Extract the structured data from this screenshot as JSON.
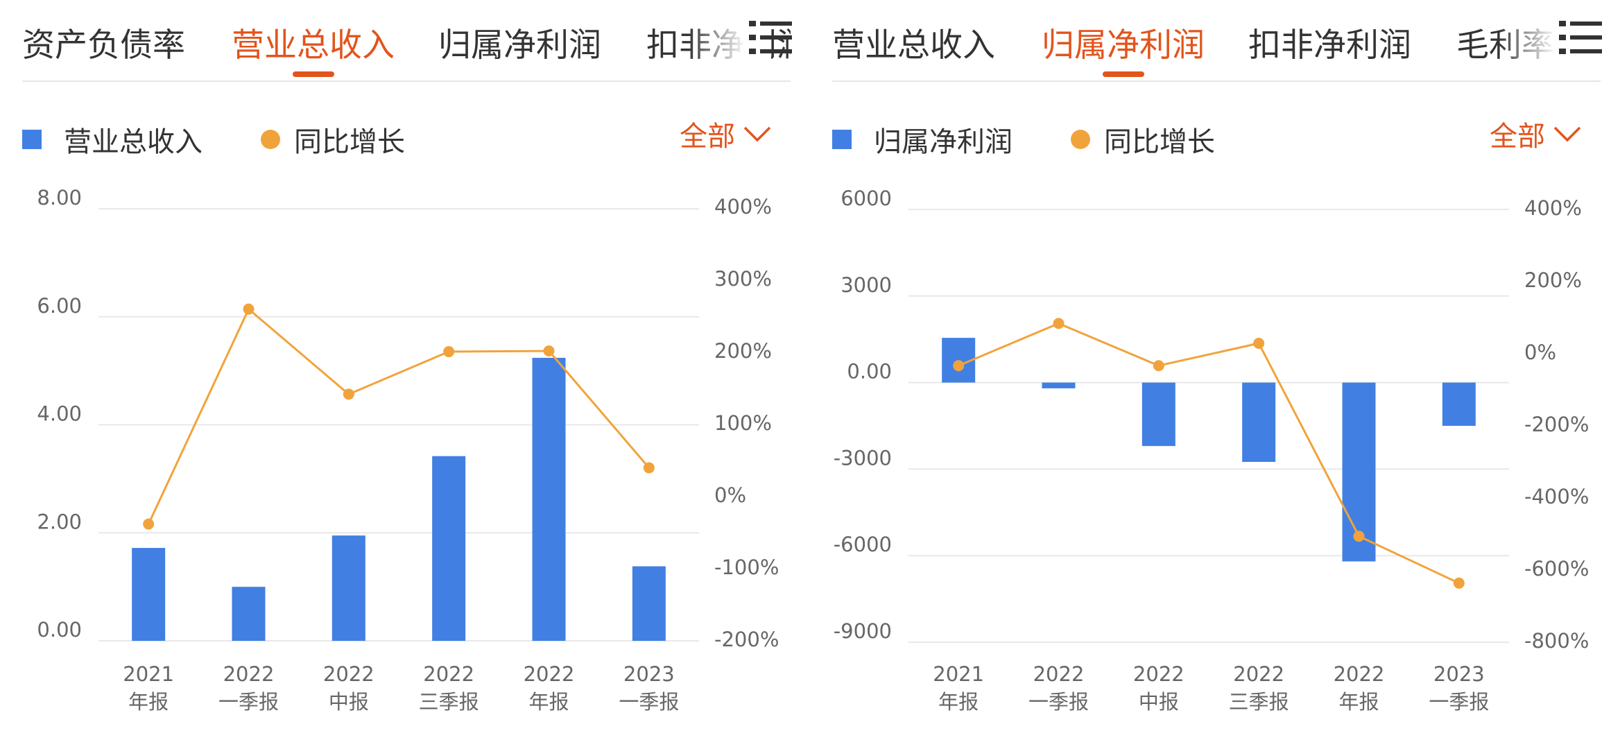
{
  "colors": {
    "accent": "#e2541c",
    "bar": "#4180e2",
    "line": "#f1a33b",
    "grid": "#e8e8e8",
    "text": "#333333",
    "axis_text": "#666666"
  },
  "panels": [
    {
      "tabs": [
        "资产负债率",
        "营业总收入",
        "归属净利润",
        "扣非净利润"
      ],
      "active_tab": 1,
      "legend": {
        "bar_label": "营业总收入",
        "line_label": "同比增长"
      },
      "filter_label": "全部",
      "menu_icon": "list-menu-icon"
    },
    {
      "tabs": [
        "营业总收入",
        "归属净利润",
        "扣非净利润",
        "毛利率"
      ],
      "active_tab": 1,
      "legend": {
        "bar_label": "归属净利润",
        "line_label": "同比增长"
      },
      "filter_label": "全部",
      "menu_icon": "list-menu-icon"
    }
  ],
  "chart_data": [
    {
      "type": "bar",
      "categories": [
        [
          "2021",
          "年报"
        ],
        [
          "2022",
          "一季报"
        ],
        [
          "2022",
          "中报"
        ],
        [
          "2022",
          "三季报"
        ],
        [
          "2022",
          "年报"
        ],
        [
          "2023",
          "一季报"
        ]
      ],
      "series": [
        {
          "name": "营业总收入",
          "type": "bar",
          "axis": "left",
          "values": [
            1.72,
            1.0,
            1.95,
            3.42,
            5.24,
            1.38
          ]
        },
        {
          "name": "同比增长",
          "type": "line",
          "axis": "right",
          "values": [
            -40,
            258,
            140,
            199,
            200,
            38
          ]
        }
      ],
      "left_axis": {
        "ticks": [
          "8.00",
          "6.00",
          "4.00",
          "2.00",
          "0.00"
        ],
        "range": [
          0,
          8
        ]
      },
      "right_axis": {
        "ticks": [
          "400%",
          "300%",
          "200%",
          "100%",
          "0%",
          "-100%",
          "-200%"
        ],
        "range": [
          -200,
          400
        ]
      }
    },
    {
      "type": "bar",
      "categories": [
        [
          "2021",
          "年报"
        ],
        [
          "2022",
          "一季报"
        ],
        [
          "2022",
          "中报"
        ],
        [
          "2022",
          "三季报"
        ],
        [
          "2022",
          "年报"
        ],
        [
          "2023",
          "一季报"
        ]
      ],
      "series": [
        {
          "name": "归属净利润",
          "type": "bar",
          "axis": "left",
          "values": [
            1550,
            -200,
            -2200,
            -2750,
            -6200,
            -1500
          ]
        },
        {
          "name": "同比增长",
          "type": "line",
          "axis": "right",
          "values": [
            -37,
            80,
            -37,
            25,
            -510,
            -640
          ]
        }
      ],
      "left_axis": {
        "ticks": [
          "6000",
          "3000",
          "0.00",
          "-3000",
          "-6000",
          "-9000"
        ],
        "range": [
          -9000,
          6000
        ]
      },
      "right_axis": {
        "ticks": [
          "400%",
          "200%",
          "0%",
          "-200%",
          "-400%",
          "-600%",
          "-800%"
        ],
        "range": [
          -800,
          400
        ]
      }
    }
  ]
}
